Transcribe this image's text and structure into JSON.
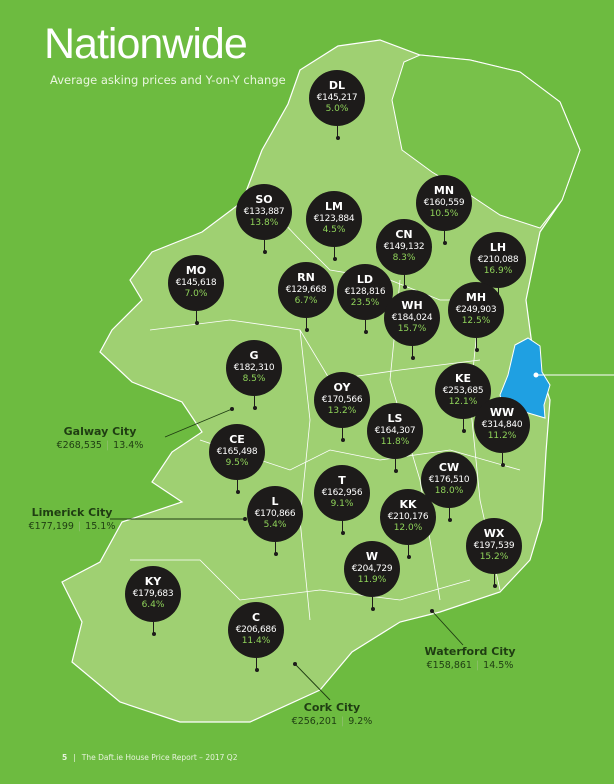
{
  "header": {
    "title": "Nationwide",
    "subtitle": "Average asking prices and Y-on-Y change"
  },
  "colors": {
    "background": "#6dbb40",
    "land": "#9fd072",
    "northern_ireland": "#78c14a",
    "dublin": "#1fa0e2",
    "pin": "#1d1b1a",
    "change_text": "#8fd35a"
  },
  "counties": [
    {
      "code": "DL",
      "price": "€145,217",
      "change": "5.0%"
    },
    {
      "code": "SO",
      "price": "€133,887",
      "change": "13.8%"
    },
    {
      "code": "LM",
      "price": "€123,884",
      "change": "4.5%"
    },
    {
      "code": "MN",
      "price": "€160,559",
      "change": "10.5%"
    },
    {
      "code": "CN",
      "price": "€149,132",
      "change": "8.3%"
    },
    {
      "code": "LH",
      "price": "€210,088",
      "change": "16.9%"
    },
    {
      "code": "MO",
      "price": "€145,618",
      "change": "7.0%"
    },
    {
      "code": "RN",
      "price": "€129,668",
      "change": "6.7%"
    },
    {
      "code": "LD",
      "price": "€128,816",
      "change": "23.5%"
    },
    {
      "code": "WH",
      "price": "€184,024",
      "change": "15.7%"
    },
    {
      "code": "MH",
      "price": "€249,903",
      "change": "12.5%"
    },
    {
      "code": "G",
      "price": "€182,310",
      "change": "8.5%"
    },
    {
      "code": "OY",
      "price": "€170,566",
      "change": "13.2%"
    },
    {
      "code": "KE",
      "price": "€253,685",
      "change": "12.1%"
    },
    {
      "code": "LS",
      "price": "€164,307",
      "change": "11.8%"
    },
    {
      "code": "WW",
      "price": "€314,840",
      "change": "11.2%"
    },
    {
      "code": "CE",
      "price": "€165,498",
      "change": "9.5%"
    },
    {
      "code": "CW",
      "price": "€176,510",
      "change": "18.0%"
    },
    {
      "code": "T",
      "price": "€162,956",
      "change": "9.1%"
    },
    {
      "code": "L",
      "price": "€170,866",
      "change": "5.4%"
    },
    {
      "code": "KK",
      "price": "€210,176",
      "change": "12.0%"
    },
    {
      "code": "WX",
      "price": "€197,539",
      "change": "15.2%"
    },
    {
      "code": "W",
      "price": "€204,729",
      "change": "11.9%"
    },
    {
      "code": "KY",
      "price": "€179,683",
      "change": "6.4%"
    },
    {
      "code": "C",
      "price": "€206,686",
      "change": "11.4%"
    }
  ],
  "cities": [
    {
      "name": "Galway City",
      "price": "€268,535",
      "change": "13.4%"
    },
    {
      "name": "Limerick City",
      "price": "€177,199",
      "change": "15.1%"
    },
    {
      "name": "Cork City",
      "price": "€256,201",
      "change": "9.2%"
    },
    {
      "name": "Waterford City",
      "price": "€158,861",
      "change": "14.5%"
    }
  ],
  "footer": {
    "page": "5",
    "text": "The Daft.ie House Price Report – 2017 Q2"
  }
}
